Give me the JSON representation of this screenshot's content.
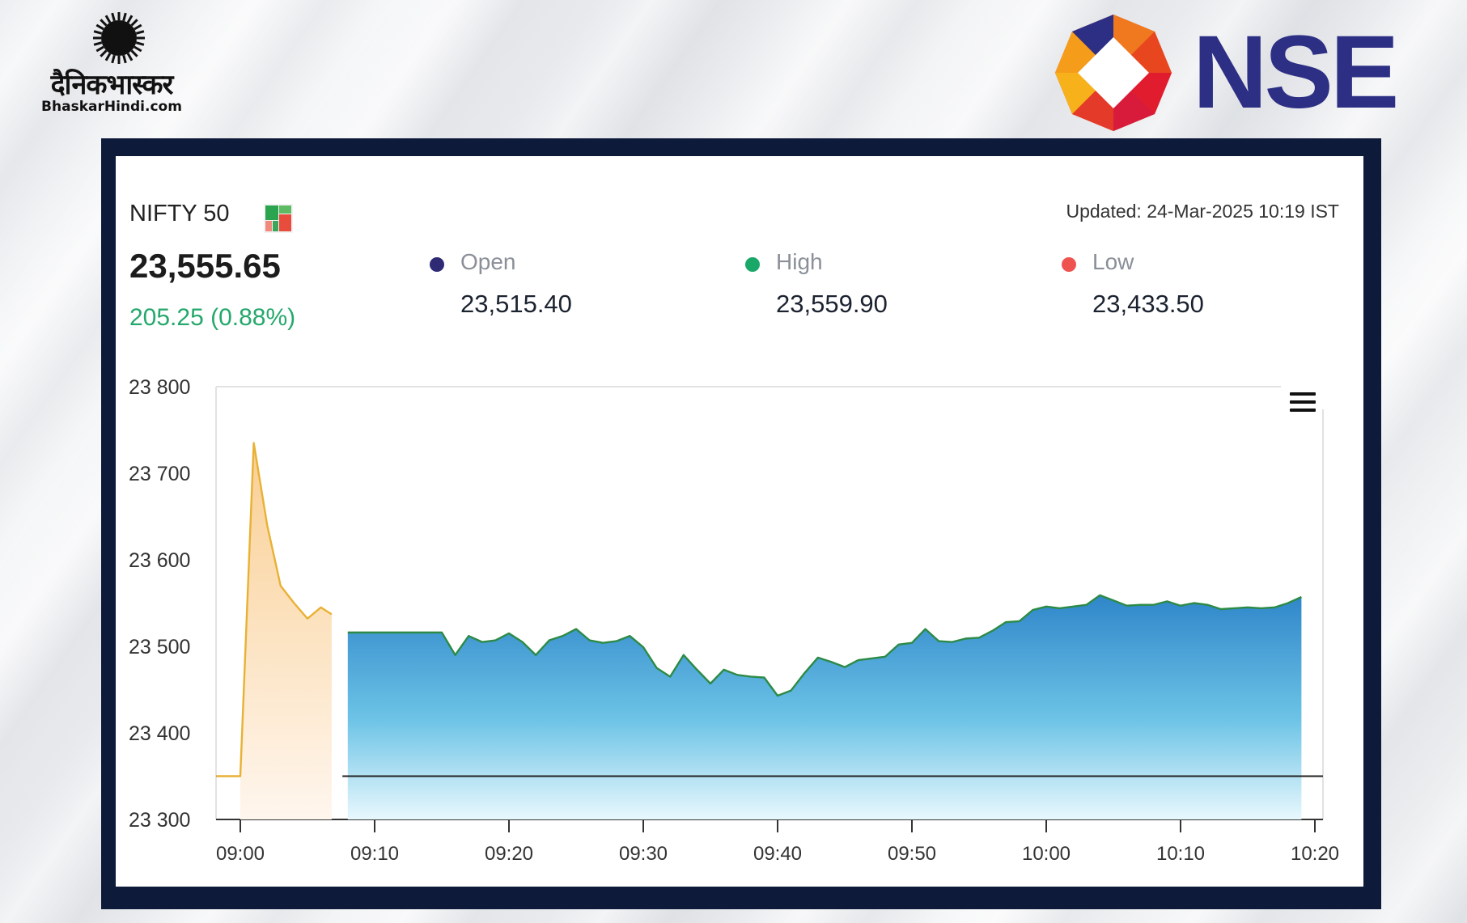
{
  "branding": {
    "bhaskar_title": "दैनिकभास्कर",
    "bhaskar_site": "BhaskarHindi.com",
    "nse": "NSE"
  },
  "index": {
    "name": "NIFTY 50",
    "last": "23,555.65",
    "change": "205.25 (0.88%)",
    "updated": "Updated: 24-Mar-2025 10:19 IST"
  },
  "stats": [
    {
      "label": "Open",
      "value": "23,515.40",
      "color": "#2e2a74"
    },
    {
      "label": "High",
      "value": "23,559.90",
      "color": "#1aa868"
    },
    {
      "label": "Low",
      "value": "23,433.50",
      "color": "#ef5350"
    }
  ],
  "colors": {
    "up_line": "#2c8a46",
    "pre_line": "#e8b134",
    "frame": "#0d1a3a"
  },
  "chart_data": {
    "type": "area",
    "ylim": [
      23300,
      23800
    ],
    "y_ticks": [
      "23 300",
      "23 400",
      "23 500",
      "23 600",
      "23 700",
      "23 800"
    ],
    "y_tick_values": [
      23300,
      23400,
      23500,
      23600,
      23700,
      23800
    ],
    "x_ticks": [
      "09:00",
      "09:10",
      "09:20",
      "09:30",
      "09:40",
      "09:50",
      "10:00",
      "10:10",
      "10:20"
    ],
    "x_tick_minutes": [
      0,
      10,
      20,
      30,
      40,
      50,
      60,
      70,
      80
    ],
    "baseline": 23350,
    "grid": false,
    "series": [
      {
        "session": "pre-open",
        "color": "#e8b134",
        "points": [
          [
            -1.8,
            23350
          ],
          [
            0,
            23350
          ],
          [
            1,
            23735
          ],
          [
            2,
            23640
          ],
          [
            3,
            23570
          ],
          [
            4,
            23550
          ],
          [
            5,
            23532
          ],
          [
            6,
            23545
          ],
          [
            6.8,
            23537
          ]
        ]
      },
      {
        "session": "normal",
        "color": "#2c8a46",
        "points": [
          [
            8,
            23516
          ],
          [
            10,
            23516
          ],
          [
            12,
            23516
          ],
          [
            14,
            23516
          ],
          [
            15,
            23516
          ],
          [
            16,
            23490
          ],
          [
            17,
            23512
          ],
          [
            18,
            23505
          ],
          [
            19,
            23507
          ],
          [
            20,
            23515
          ],
          [
            21,
            23505
          ],
          [
            22,
            23490
          ],
          [
            23,
            23507
          ],
          [
            24,
            23512
          ],
          [
            25,
            23520
          ],
          [
            26,
            23507
          ],
          [
            27,
            23504
          ],
          [
            28,
            23506
          ],
          [
            29,
            23512
          ],
          [
            30,
            23499
          ],
          [
            31,
            23475
          ],
          [
            32,
            23465
          ],
          [
            33,
            23490
          ],
          [
            34,
            23473
          ],
          [
            35,
            23457
          ],
          [
            36,
            23473
          ],
          [
            37,
            23467
          ],
          [
            38,
            23465
          ],
          [
            39,
            23464
          ],
          [
            40,
            23443
          ],
          [
            41,
            23449
          ],
          [
            42,
            23469
          ],
          [
            43,
            23487
          ],
          [
            44,
            23482
          ],
          [
            45,
            23476
          ],
          [
            46,
            23484
          ],
          [
            47,
            23486
          ],
          [
            48,
            23488
          ],
          [
            49,
            23502
          ],
          [
            50,
            23504
          ],
          [
            51,
            23520
          ],
          [
            52,
            23506
          ],
          [
            53,
            23505
          ],
          [
            54,
            23509
          ],
          [
            55,
            23510
          ],
          [
            56,
            23518
          ],
          [
            57,
            23528
          ],
          [
            58,
            23529
          ],
          [
            59,
            23542
          ],
          [
            60,
            23546
          ],
          [
            61,
            23544
          ],
          [
            62,
            23546
          ],
          [
            63,
            23548
          ],
          [
            64,
            23559
          ],
          [
            65,
            23553
          ],
          [
            66,
            23547
          ],
          [
            67,
            23548
          ],
          [
            68,
            23548
          ],
          [
            69,
            23552
          ],
          [
            70,
            23547
          ],
          [
            71,
            23550
          ],
          [
            72,
            23548
          ],
          [
            73,
            23543
          ],
          [
            74,
            23544
          ],
          [
            75,
            23545
          ],
          [
            76,
            23544
          ],
          [
            77,
            23545
          ],
          [
            78,
            23550
          ],
          [
            79,
            23557
          ]
        ]
      }
    ]
  }
}
